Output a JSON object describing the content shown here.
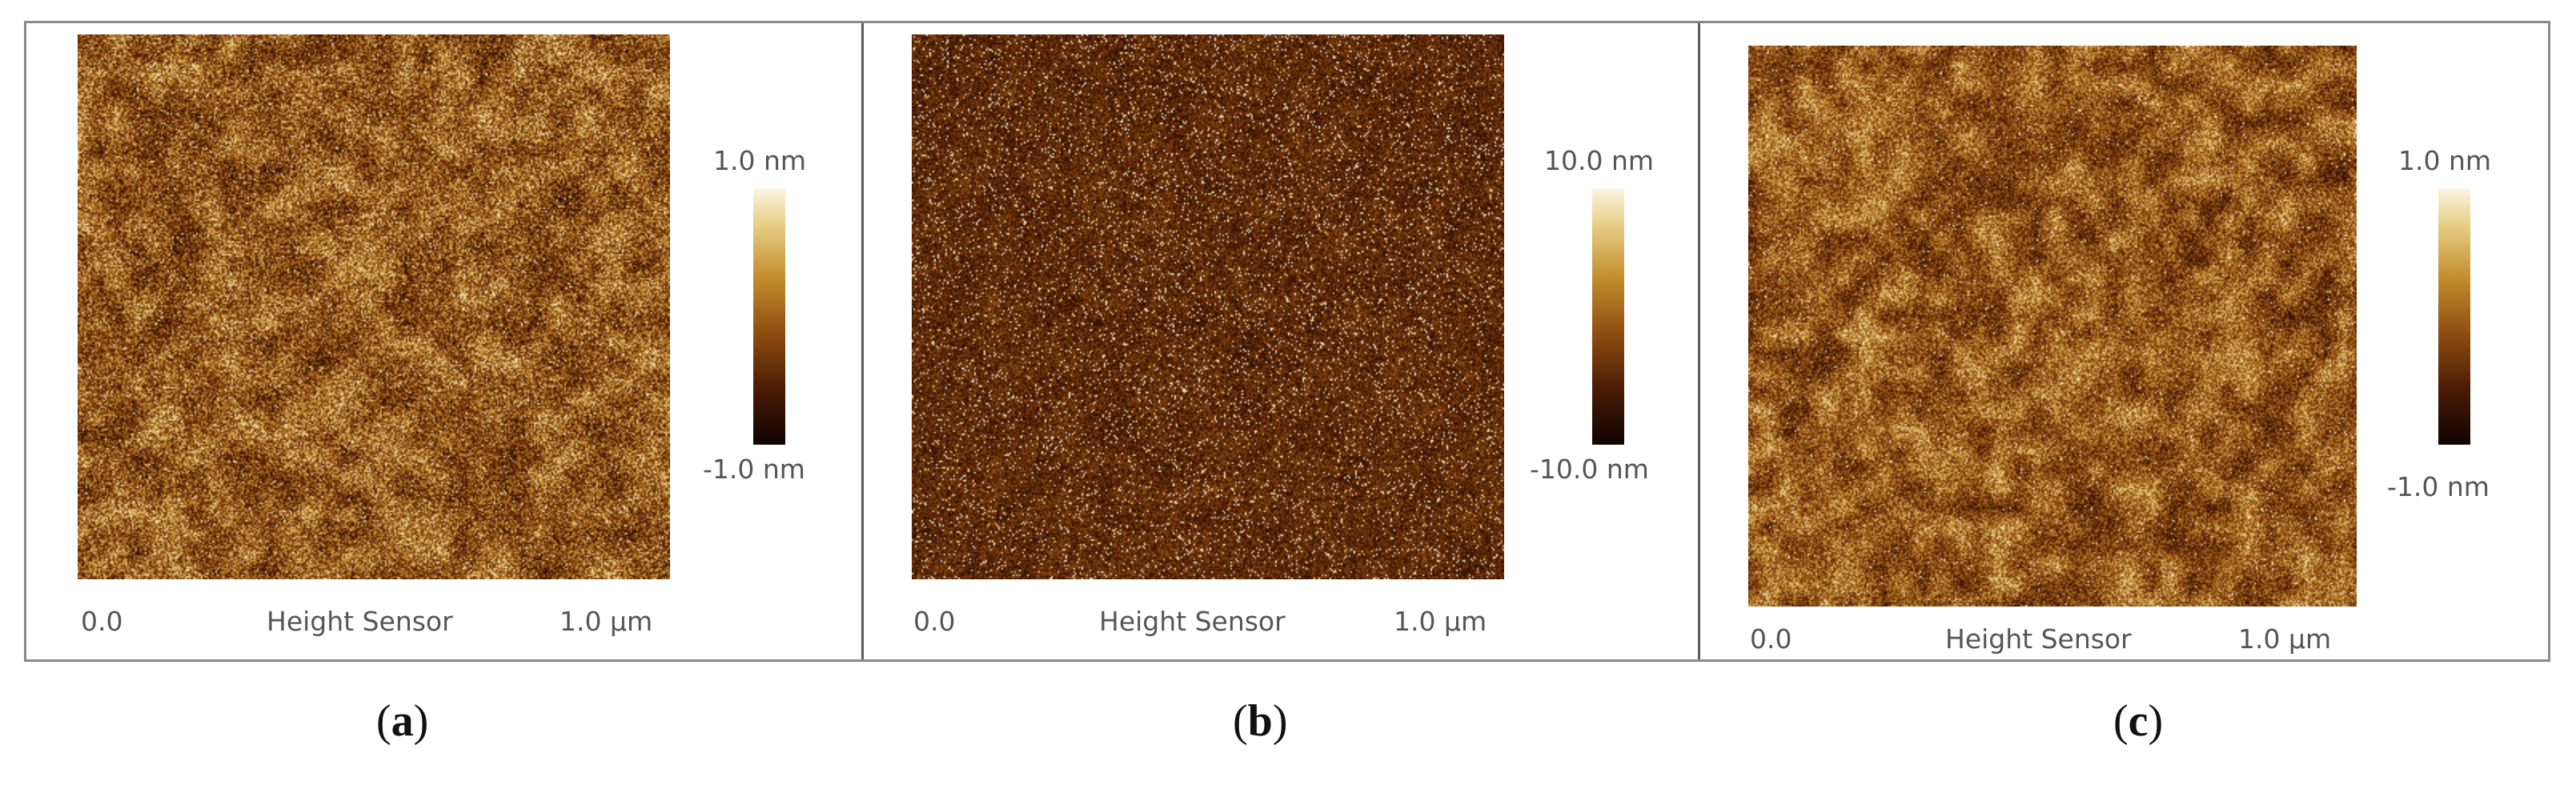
{
  "panels": [
    {
      "id": "a",
      "axis_start": "0.0",
      "axis_title": "Height Sensor",
      "axis_end": "1.0 µm",
      "scale_max": "1.0 nm",
      "scale_min": "-1.0 nm",
      "caption_open": "(",
      "caption_letter": "a",
      "caption_close": ")"
    },
    {
      "id": "b",
      "axis_start": "0.0",
      "axis_title": "Height Sensor",
      "axis_end": "1.0 µm",
      "scale_max": "10.0 nm",
      "scale_min": "-10.0 nm",
      "caption_open": "(",
      "caption_letter": "b",
      "caption_close": ")"
    },
    {
      "id": "c",
      "axis_start": "0.0",
      "axis_title": "Height Sensor",
      "axis_end": "1.0 µm",
      "scale_max": "1.0 nm",
      "scale_min": "-1.0 nm",
      "caption_open": "(",
      "caption_letter": "c",
      "caption_close": ")"
    }
  ],
  "colors": {
    "frame_border": "#8a8a8a",
    "divider": "#5a5a5a",
    "label_text": "#555555",
    "colormap": [
      "#0f0300",
      "#4a1c05",
      "#8b4a10",
      "#c08a2a",
      "#e7cf86",
      "#fbf6e4"
    ]
  }
}
